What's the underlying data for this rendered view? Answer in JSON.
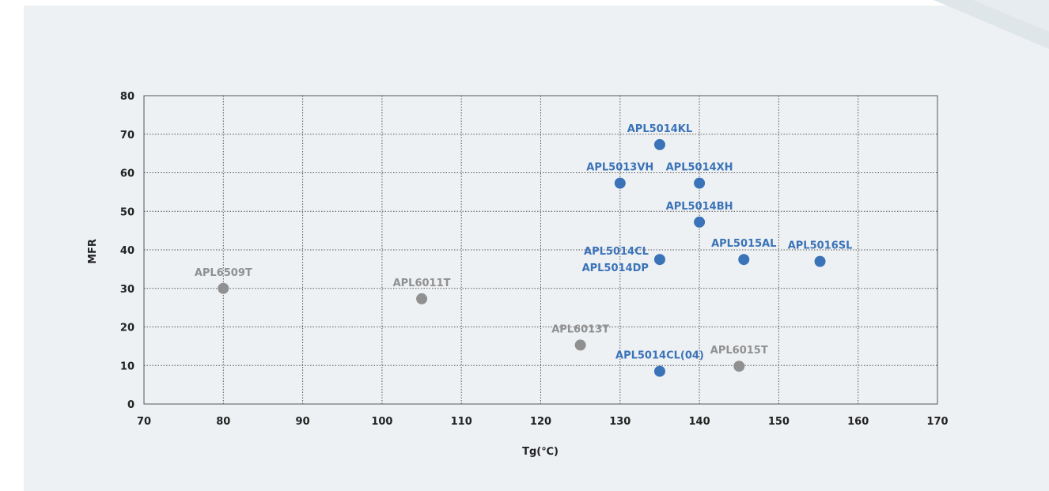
{
  "chart_data": {
    "type": "scatter",
    "title": "",
    "xlabel": "Tg(℃)",
    "ylabel": "MFR",
    "xlim": [
      70,
      170
    ],
    "ylim": [
      0,
      80
    ],
    "xticks": [
      70,
      80,
      90,
      100,
      110,
      120,
      130,
      140,
      150,
      160,
      170
    ],
    "yticks": [
      0,
      10,
      20,
      30,
      40,
      50,
      60,
      70,
      80
    ],
    "grid": true,
    "legend": "none",
    "colors": {
      "blue": "#3a73b8",
      "gray": "#909090",
      "panel": "#eef1f4",
      "grid": "#555555"
    },
    "points": [
      {
        "label": "APL6509T",
        "x": 80,
        "y": 30,
        "group": "gray"
      },
      {
        "label": "APL6011T",
        "x": 105,
        "y": 27.3,
        "group": "gray"
      },
      {
        "label": "APL6013T",
        "x": 125,
        "y": 15.3,
        "group": "gray"
      },
      {
        "label": "APL6015T",
        "x": 145,
        "y": 9.8,
        "group": "gray"
      },
      {
        "label": "APL5014CL(04)",
        "x": 135,
        "y": 8.5,
        "group": "blue"
      },
      {
        "label": "APL5014KL",
        "x": 135,
        "y": 67.3,
        "group": "blue"
      },
      {
        "label": "APL5013VH",
        "x": 130,
        "y": 57.3,
        "group": "blue"
      },
      {
        "label": "APL5014XH",
        "x": 140,
        "y": 57.3,
        "group": "blue"
      },
      {
        "label": "APL5014BH",
        "x": 140,
        "y": 47.2,
        "group": "blue"
      },
      {
        "label": "APL5014CL",
        "label2": "APL5014DP",
        "x": 135,
        "y": 37.5,
        "group": "blue"
      },
      {
        "label": "APL5015AL",
        "x": 145.6,
        "y": 37.5,
        "group": "blue"
      },
      {
        "label": "APL5016SL",
        "x": 155.2,
        "y": 37,
        "group": "blue"
      }
    ]
  }
}
